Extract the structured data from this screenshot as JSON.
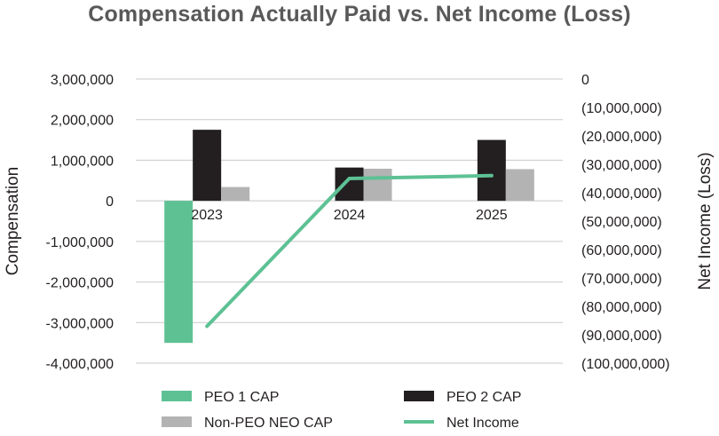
{
  "chart_data": {
    "type": "bar",
    "title": "Compensation Actually Paid vs. Net Income (Loss)",
    "categories": [
      "2023",
      "2024",
      "2025"
    ],
    "ylabel": "Compensation",
    "y2label": "Net Income (Loss)",
    "ylim": [
      -4000000,
      3000000
    ],
    "y2lim": [
      -100000000,
      0
    ],
    "yticks": [
      "3,000,000",
      "2,000,000",
      "1,000,000",
      "0",
      "-1,000,000",
      "-2,000,000",
      "-3,000,000",
      "-4,000,000"
    ],
    "y2ticks": [
      "0",
      "(10,000,000)",
      "(20,000,000)",
      "(30,000,000)",
      "(40,000,000)",
      "(50,000,000)",
      "(60,000,000)",
      "(70,000,000)",
      "(80,000,000)",
      "(90,000,000)",
      "(100,000,000)"
    ],
    "grid": true,
    "legend_position": "bottom",
    "series": [
      {
        "name": "PEO 1 CAP",
        "kind": "bar",
        "axis": "left",
        "color": "#5dc194",
        "values": [
          -3500000,
          null,
          null
        ]
      },
      {
        "name": "PEO 2 CAP",
        "kind": "bar",
        "axis": "left",
        "color": "#231f20",
        "values": [
          1750000,
          820000,
          1500000
        ]
      },
      {
        "name": "Non-PEO NEO CAP",
        "kind": "bar",
        "axis": "left",
        "color": "#b3b3b3",
        "values": [
          340000,
          790000,
          780000
        ]
      },
      {
        "name": "Net Income",
        "kind": "line",
        "axis": "right",
        "color": "#5dc194",
        "values": [
          -87000000,
          -35000000,
          -34000000
        ]
      }
    ]
  }
}
